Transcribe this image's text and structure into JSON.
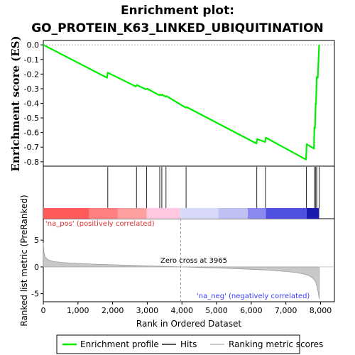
{
  "chart_data": {
    "type": "line",
    "title_line1": "Enrichment plot:",
    "title_line2": "GO_PROTEIN_K63_LINKED_UBIQUITINATION",
    "es_panel": {
      "ylabel": "Enrichment score (ES)",
      "ylim": [
        -0.83,
        0.03
      ],
      "yticks": [
        0.0,
        -0.1,
        -0.2,
        -0.3,
        -0.4,
        -0.5,
        -0.6,
        -0.7,
        -0.8
      ],
      "ytick_labels": [
        "0.0",
        "-0.1",
        "-0.2",
        "-0.3",
        "-0.4",
        "-0.5",
        "-0.6",
        "-0.7",
        "-0.8"
      ],
      "series": [
        {
          "name": "Enrichment profile",
          "color": "#00ee00",
          "x": [
            0,
            1840,
            1860,
            2670,
            2700,
            2960,
            3000,
            3350,
            3360,
            3410,
            3430,
            3530,
            3550,
            4110,
            4130,
            6150,
            6170,
            6400,
            6420,
            7580,
            7600,
            7810,
            7820,
            7840,
            7860,
            7870,
            7890,
            7920,
            7960
          ],
          "y": [
            0.0,
            -0.225,
            -0.19,
            -0.285,
            -0.275,
            -0.305,
            -0.3,
            -0.345,
            -0.34,
            -0.345,
            -0.34,
            -0.355,
            -0.35,
            -0.43,
            -0.425,
            -0.675,
            -0.645,
            -0.665,
            -0.635,
            -0.785,
            -0.68,
            -0.71,
            -0.565,
            -0.57,
            -0.4,
            -0.405,
            -0.22,
            -0.225,
            0.0
          ]
        }
      ]
    },
    "hits": {
      "name": "Hits",
      "positions": [
        1860,
        2690,
        2980,
        3360,
        3420,
        3540,
        4120,
        6160,
        6410,
        7590,
        7820,
        7860,
        7890,
        7960
      ]
    },
    "heatmap_bar": {
      "segments": [
        {
          "start": 0,
          "end": 1320,
          "color": "#ff5a5a"
        },
        {
          "start": 1320,
          "end": 2150,
          "color": "#ff8080"
        },
        {
          "start": 2150,
          "end": 2980,
          "color": "#ffa0a0"
        },
        {
          "start": 2980,
          "end": 3950,
          "color": "#ffc8e0"
        },
        {
          "start": 3950,
          "end": 5050,
          "color": "#d8d8f8"
        },
        {
          "start": 5050,
          "end": 5900,
          "color": "#c0c0f4"
        },
        {
          "start": 5900,
          "end": 6420,
          "color": "#8a8af0"
        },
        {
          "start": 6420,
          "end": 7600,
          "color": "#5050e0"
        },
        {
          "start": 7600,
          "end": 7960,
          "color": "#1a1ab0"
        }
      ]
    },
    "ranked_panel": {
      "ylabel": "Ranked list metric (PreRanked)",
      "ylim": [
        -6.5,
        9
      ],
      "yticks": [
        5,
        0,
        -5
      ],
      "ytick_labels": [
        "5",
        "0",
        "-5"
      ],
      "metric_curve": {
        "x": [
          0,
          20,
          60,
          150,
          300,
          600,
          1000,
          1500,
          2000,
          2500,
          3000,
          3500,
          3965,
          4500,
          5000,
          5500,
          6000,
          6500,
          7000,
          7300,
          7500,
          7650,
          7750,
          7820,
          7870,
          7910,
          7940,
          7960
        ],
        "y": [
          4.5,
          2.6,
          1.8,
          1.3,
          1.0,
          0.8,
          0.65,
          0.5,
          0.4,
          0.3,
          0.2,
          0.1,
          0.0,
          -0.1,
          -0.2,
          -0.32,
          -0.45,
          -0.6,
          -0.85,
          -1.05,
          -1.3,
          -1.6,
          -1.95,
          -2.4,
          -3.0,
          -4.0,
          -5.0,
          -6.0
        ]
      },
      "pos_label": "'na_pos' (positively correlated)",
      "neg_label": "'na_neg' (negatively correlated)",
      "zero_cross_label": "Zero cross at 3965",
      "zero_cross": 3965
    },
    "xaxis": {
      "label": "Rank in Ordered Dataset",
      "xlim": [
        0,
        8400
      ],
      "ticks": [
        0,
        1000,
        2000,
        3000,
        4000,
        5000,
        6000,
        7000,
        8000
      ],
      "tick_labels": [
        "0",
        "1,000",
        "2,000",
        "3,000",
        "4,000",
        "5,000",
        "6,000",
        "7,000",
        "8,000"
      ]
    },
    "legend": [
      {
        "label": "Enrichment profile",
        "color": "#00ee00"
      },
      {
        "label": "Hits",
        "color": "#555555"
      },
      {
        "label": "Ranking metric scores",
        "color": "#cccccc"
      }
    ]
  }
}
